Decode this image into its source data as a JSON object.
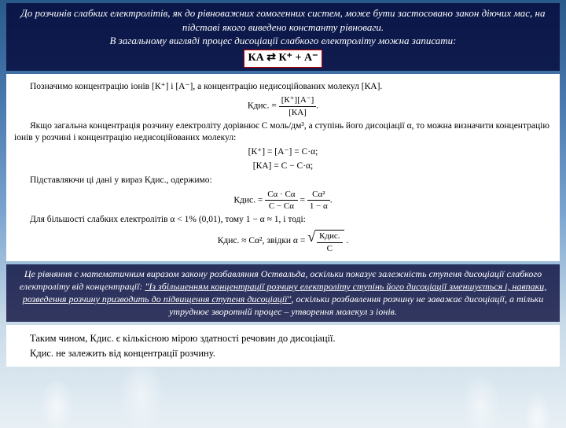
{
  "intro": {
    "line1": "До розчинів слабких електролітів, як до рівноважних гомогенних систем, може бути застосовано закон діючих мас, на підставі якого виведено константу рівноваги.",
    "line2": "В загальному вигляді процес дисоціації слабкого електроліту можна записати:",
    "equation": "КА ⇄ К⁺ + А⁻"
  },
  "block1": {
    "p1": "Позначимо концентрацію іонів [К⁺] і [А⁻], а концентрацію недисоці­йованих молекул [КА].",
    "eq1_left": "Кдис. =",
    "eq1_num": "[К⁺][А⁻]",
    "eq1_den": "[КА]",
    "p2": "Якщо загальна концентрація розчину електроліту дорівнює С моль/дм³, а ступінь його дисоціації α, то можна визначити концентрацію іонів у розчині і концентрацію недисоційованих молекул:",
    "eq2": "[К⁺] = [А⁻] = С·α;",
    "eq3": "[КА] = С − С·α;",
    "p3": "Підставляючи ці дані у вираз Кдис., одержимо:",
    "eq4_left": "Кдис. =",
    "eq4a_num": "Сα · Сα",
    "eq4a_den": "С − Сα",
    "eq4_eq": " = ",
    "eq4b_num": "Сα²",
    "eq4b_den": "1 − α",
    "p4": "Для більшості слабких електролітів α < 1% (0,01), тому 1 − α ≈ 1, і тоді:",
    "eq5_left": "Кдис. ≈ Сα², звідки α = ",
    "eq5_num": "Кдис.",
    "eq5_den": "С"
  },
  "ostwald": {
    "pre": "Це рівняння є математичним виразом закону розбавляння Оствальда, оскільки показує залежність ступеня дисоціації слабкого електроліту від концентрації: ",
    "quote": "\"Із збільшенням концентрації розчину електроліту ступінь його дисоціації зменшується і, навпаки, розведення розчину призводить до підвищення ступеня дисоціації\"",
    "post": ", оскільки розбавлення розчину не заважає дисоціації, а тільки утруднює зворотній процес – утворення молекул з іонів."
  },
  "block2": {
    "p1": "Таким чином, Кдис. є кількісною мірою здатності речовин до ди­соціації.",
    "p2": "Кдис. не залежить від концентрації розчину."
  },
  "colors": {
    "bg_top": "#2a5a8a",
    "bg_bottom": "#e8f0f5",
    "panel_dark_bg": "rgba(0,0,50,0.75)",
    "panel_white_bg": "#ffffff",
    "highlight_border": "#c00"
  }
}
